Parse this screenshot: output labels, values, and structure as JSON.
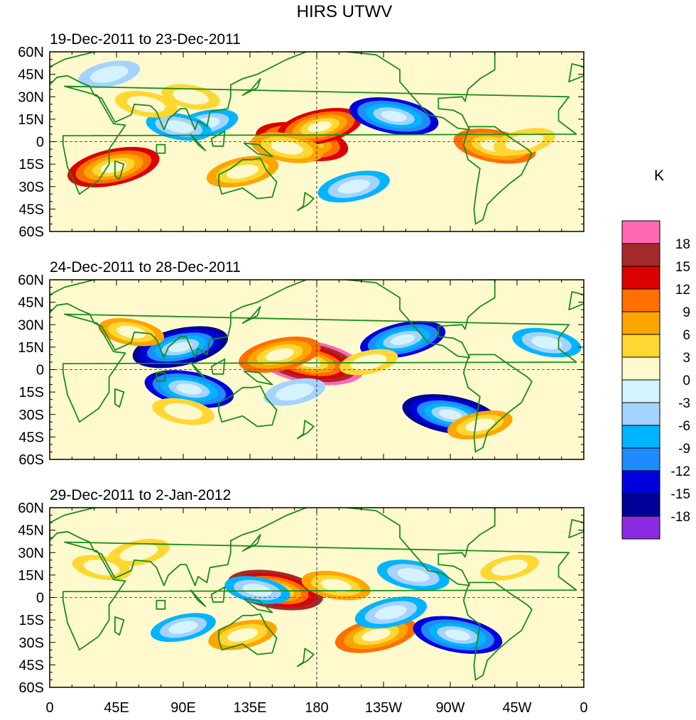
{
  "title": "HIRS UTWV",
  "units": "K",
  "lat_labels": [
    "60N",
    "45N",
    "30N",
    "15N",
    "0",
    "15S",
    "30S",
    "45S",
    "60S"
  ],
  "lon_labels": [
    "0",
    "45E",
    "90E",
    "135E",
    "180",
    "135W",
    "90W",
    "45W",
    "0"
  ],
  "colorbar": {
    "levels": [
      "18",
      "15",
      "12",
      "9",
      "6",
      "3",
      "0",
      "-3",
      "-6",
      "-9",
      "-12",
      "-15",
      "-18"
    ],
    "colors": [
      "#ff69b4",
      "#a52a2a",
      "#dc0000",
      "#ff6e00",
      "#ffa500",
      "#ffd733",
      "#fffacd",
      "#d5f3ff",
      "#a5d3ff",
      "#00b4ff",
      "#1e8cff",
      "#0000dc",
      "#000096",
      "#8a2be2"
    ]
  },
  "colors": {
    "land_outline": "#1a8a1a",
    "text": "#000000"
  },
  "panels": [
    {
      "period": "19-Dec-2011 to 23-Dec-2011",
      "anomalies": [
        {
          "lon": 170,
          "lat": 0,
          "v": 15
        },
        {
          "lon": 182,
          "lat": 10,
          "v": 13
        },
        {
          "lon": 160,
          "lat": -4,
          "v": 9
        },
        {
          "lon": 43,
          "lat": -17,
          "v": 15
        },
        {
          "lon": 300,
          "lat": -3,
          "v": 12
        },
        {
          "lon": 130,
          "lat": -20,
          "v": 9
        },
        {
          "lon": 232,
          "lat": 17,
          "v": -14
        },
        {
          "lon": 105,
          "lat": 12,
          "v": -7
        },
        {
          "lon": 87,
          "lat": 10,
          "v": -7
        },
        {
          "lon": 205,
          "lat": -30,
          "v": -9
        },
        {
          "lon": 65,
          "lat": 25,
          "v": 6
        },
        {
          "lon": 320,
          "lat": 0,
          "v": 6
        },
        {
          "lon": 95,
          "lat": 30,
          "v": 5
        },
        {
          "lon": 40,
          "lat": 45,
          "v": -6
        }
      ]
    },
    {
      "period": "24-Dec-2011 to 28-Dec-2011",
      "anomalies": [
        {
          "lon": 175,
          "lat": 5,
          "v": 20
        },
        {
          "lon": 155,
          "lat": 10,
          "v": 12
        },
        {
          "lon": 270,
          "lat": -30,
          "v": -16
        },
        {
          "lon": 88,
          "lat": 15,
          "v": -16
        },
        {
          "lon": 94,
          "lat": -13,
          "v": -14
        },
        {
          "lon": 238,
          "lat": 20,
          "v": -13
        },
        {
          "lon": 55,
          "lat": 25,
          "v": 7
        },
        {
          "lon": 290,
          "lat": -37,
          "v": 7
        },
        {
          "lon": 90,
          "lat": -28,
          "v": 6
        },
        {
          "lon": 215,
          "lat": 5,
          "v": 5
        },
        {
          "lon": 335,
          "lat": 18,
          "v": -8
        },
        {
          "lon": 165,
          "lat": -15,
          "v": -6
        }
      ]
    },
    {
      "period": "29-Dec-2011 to 2-Jan-2012",
      "anomalies": [
        {
          "lon": 152,
          "lat": 5,
          "v": 16
        },
        {
          "lon": 220,
          "lat": -25,
          "v": 12
        },
        {
          "lon": 193,
          "lat": 8,
          "v": 8
        },
        {
          "lon": 130,
          "lat": -25,
          "v": 8
        },
        {
          "lon": 275,
          "lat": -25,
          "v": -14
        },
        {
          "lon": 230,
          "lat": -10,
          "v": -9
        },
        {
          "lon": 245,
          "lat": 15,
          "v": -9
        },
        {
          "lon": 90,
          "lat": -20,
          "v": -7
        },
        {
          "lon": 140,
          "lat": 5,
          "v": -7
        },
        {
          "lon": 60,
          "lat": 30,
          "v": 6
        },
        {
          "lon": 35,
          "lat": 20,
          "v": 5
        },
        {
          "lon": 310,
          "lat": 20,
          "v": 5
        }
      ]
    }
  ]
}
